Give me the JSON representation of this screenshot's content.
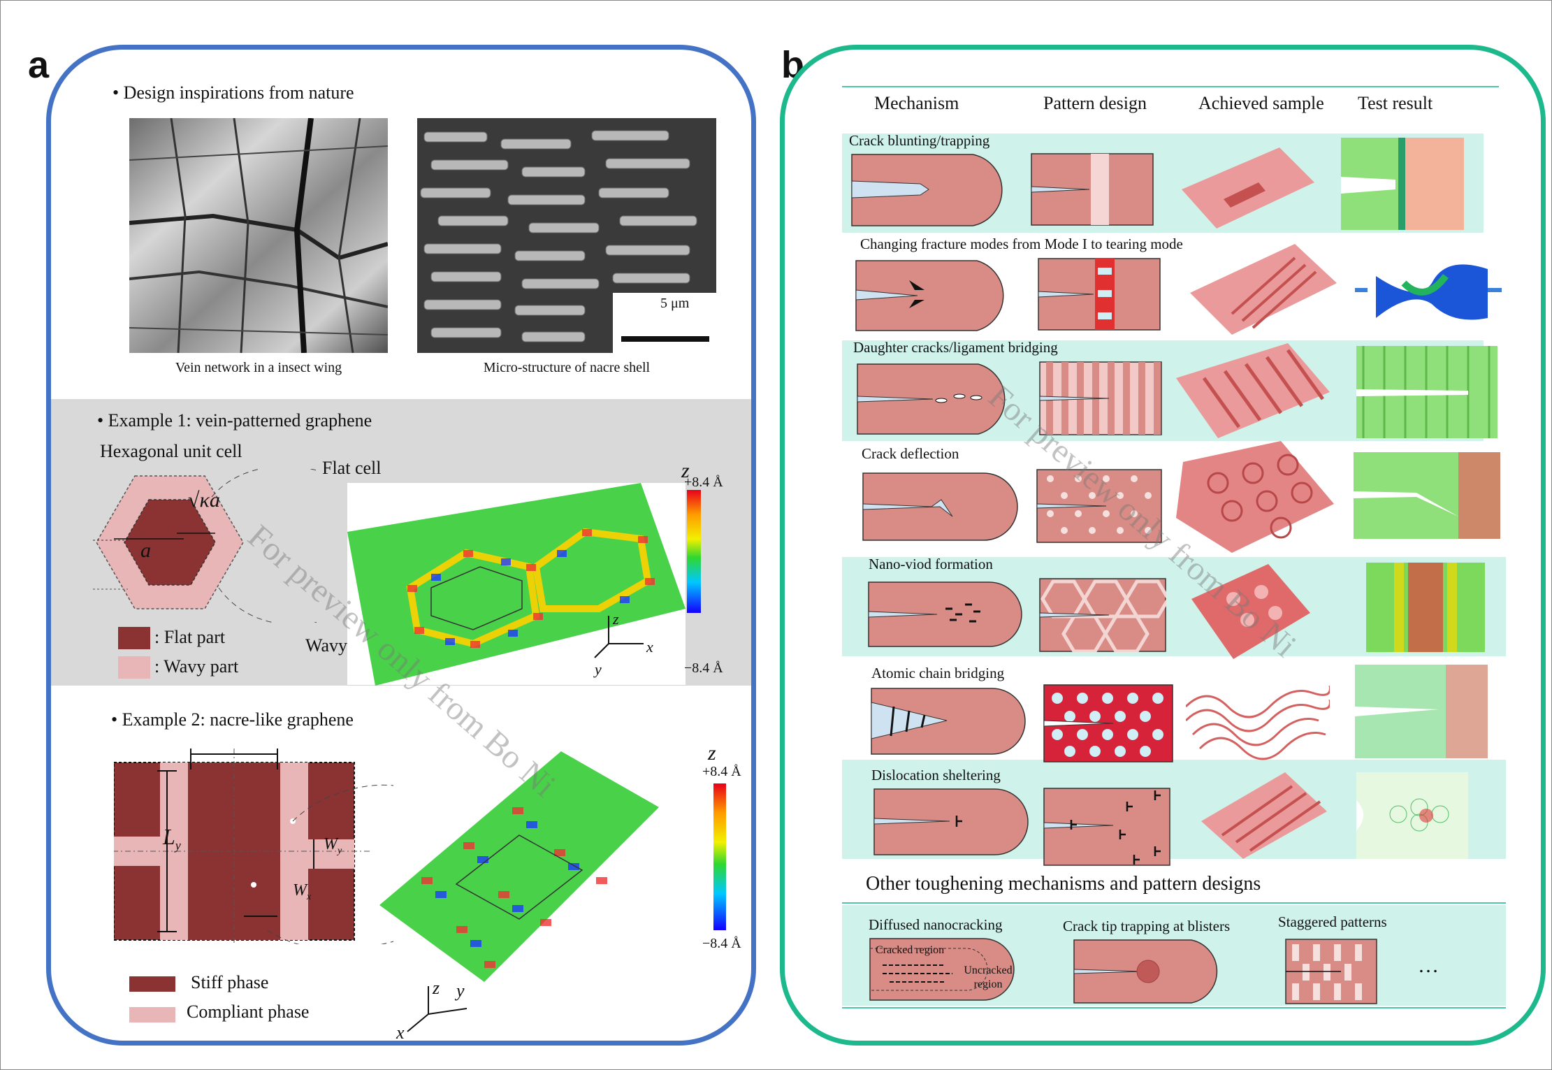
{
  "panel_a": {
    "letter": "a",
    "inspiration_heading": "Design inspirations from nature",
    "photo1_caption": "Vein network in a insect wing",
    "photo2_caption": "Micro-structure of nacre shell",
    "scale_bar": "5 μm",
    "example1_heading": "Example 1: vein-patterned graphene",
    "hex_label": "Hexagonal unit cell",
    "flat_cell_label": "Flat cell",
    "wavy_boundary_label": "Wavy boundary",
    "sqrt_label": "√κa",
    "a_label": "a",
    "legend_flat": ": Flat part",
    "legend_wavy": ": Wavy part",
    "z_label": "z",
    "z_max": "+8.4 Å",
    "z_min": "−8.4 Å",
    "axis_z": "z",
    "axis_x": "x",
    "axis_y": "y",
    "example2_heading": "Example 2: nacre-like graphene",
    "ly_label": "L",
    "ly_sub": "y",
    "wy_label": "W",
    "wy_sub": "y",
    "wx_label": "W",
    "wx_sub": "x",
    "legend_stiff": "Stiff phase",
    "legend_compliant": "Compliant phase"
  },
  "panel_b": {
    "letter": "b",
    "columns": [
      "Mechanism",
      "Pattern design",
      "Achieved sample",
      "Test result"
    ],
    "rows": [
      "Crack blunting/trapping",
      "Changing fracture modes from Mode I to tearing mode",
      "Daughter cracks/ligament bridging",
      "Crack deflection",
      "Nano-viod formation",
      "Atomic chain bridging",
      "Dislocation sheltering"
    ],
    "other_heading": "Other toughening mechanisms and pattern designs",
    "other": [
      "Diffused nanocracking",
      "Crack tip trapping at blisters",
      "Staggered patterns"
    ],
    "cracked_region": "Cracked region",
    "uncracked_region": "Uncracked region",
    "ellipsis": "…"
  },
  "watermark": "For preview only from Bo Ni"
}
